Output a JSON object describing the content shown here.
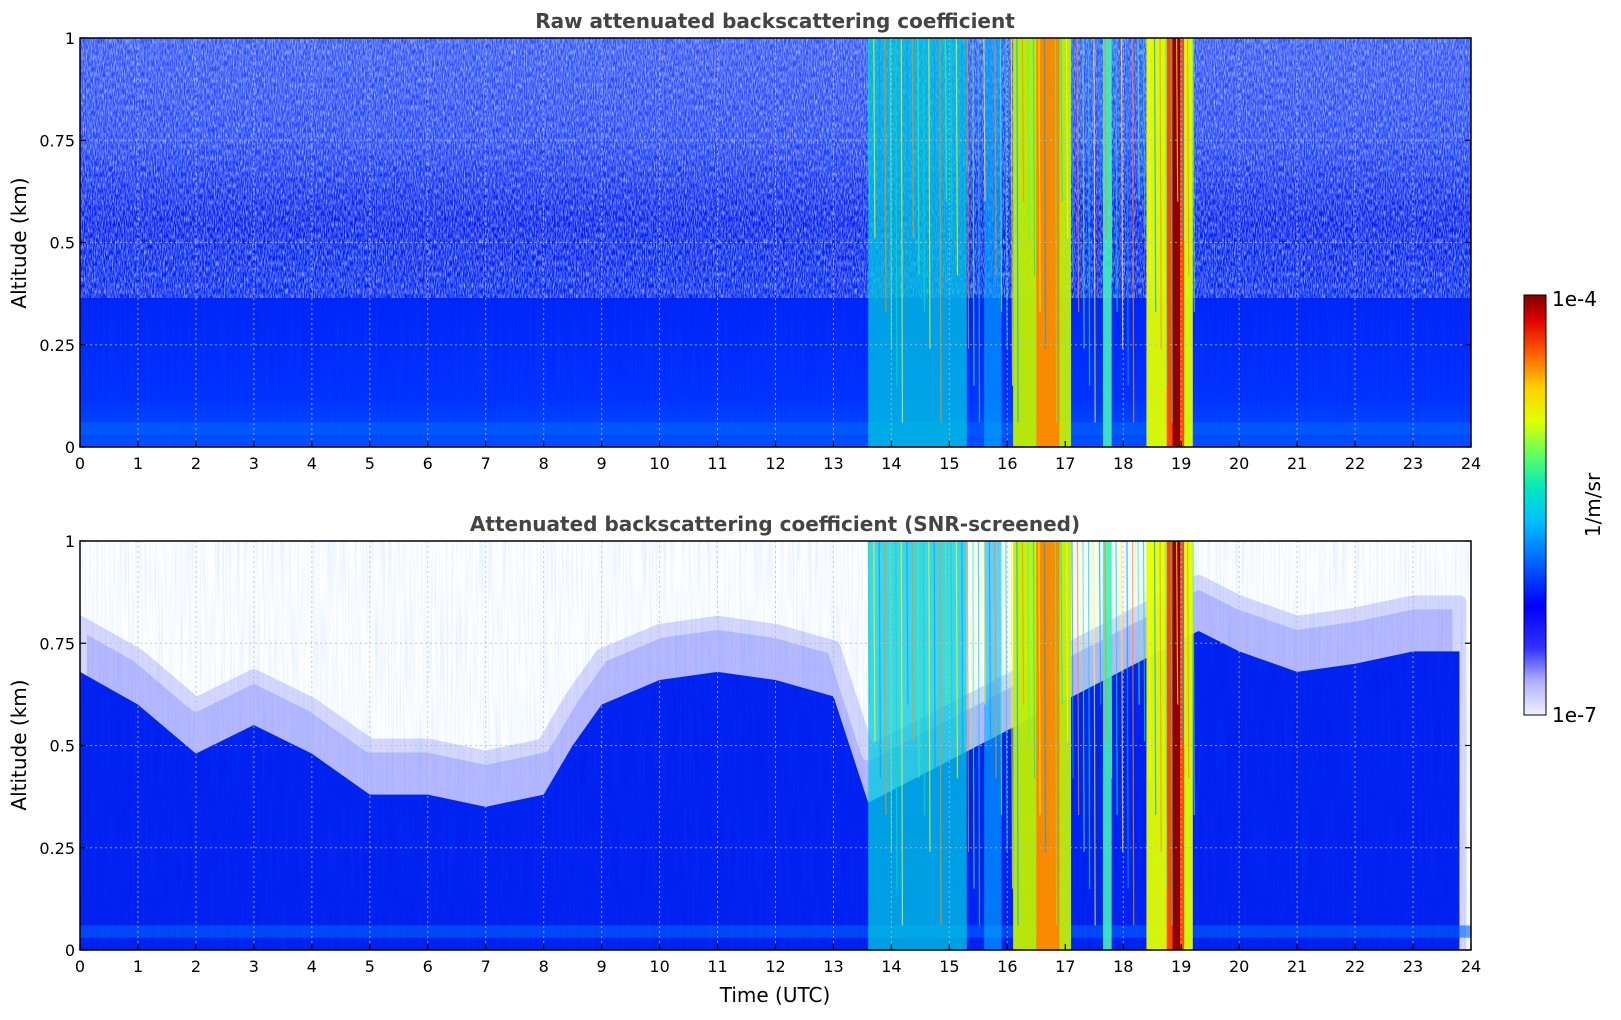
{
  "chart_data": [
    {
      "type": "heatmap",
      "title": "Raw attenuated backscattering coefficient",
      "xlabel": "",
      "ylabel": "Altitude (km)",
      "xlim": [
        0,
        24
      ],
      "ylim": [
        0,
        1
      ],
      "x_ticks": [
        "0",
        "1",
        "2",
        "3",
        "4",
        "5",
        "6",
        "7",
        "8",
        "9",
        "10",
        "11",
        "12",
        "13",
        "14",
        "15",
        "16",
        "17",
        "18",
        "19",
        "20",
        "21",
        "22",
        "23",
        "24"
      ],
      "y_ticks": [
        "0",
        "0.25",
        "0.5",
        "0.75",
        "1"
      ],
      "grid": true,
      "features": [
        {
          "kind": "noise_top_boundary_km",
          "description": "",
          "value_range": [
            0.3,
            0.55
          ]
        },
        {
          "kind": "cloud",
          "x_range": [
            13.6,
            15.3
          ],
          "intensity": "medium"
        },
        {
          "kind": "cloud",
          "x_range": [
            16.1,
            17.1
          ],
          "intensity": "high"
        },
        {
          "kind": "cloud",
          "x_range": [
            17.7,
            17.8
          ],
          "intensity": "medium"
        },
        {
          "kind": "cloud",
          "x_range": [
            18.4,
            19.2
          ],
          "intensity": "very high"
        }
      ]
    },
    {
      "type": "heatmap",
      "title": "Attenuated backscattering coefficient (SNR-screened)",
      "xlabel": "Time (UTC)",
      "ylabel": "Altitude (km)",
      "xlim": [
        0,
        24
      ],
      "ylim": [
        0,
        1
      ],
      "x_ticks": [
        "0",
        "1",
        "2",
        "3",
        "4",
        "5",
        "6",
        "7",
        "8",
        "9",
        "10",
        "11",
        "12",
        "13",
        "14",
        "15",
        "16",
        "17",
        "18",
        "19",
        "20",
        "21",
        "22",
        "23",
        "24"
      ],
      "y_ticks": [
        "0",
        "0.25",
        "0.5",
        "0.75",
        "1"
      ],
      "grid": true,
      "boundary_layer_top_km": {
        "x": [
          0,
          1,
          2,
          3,
          4,
          5,
          6,
          7,
          8,
          8.5,
          9,
          10,
          11,
          12,
          13,
          13.6,
          19.3,
          20,
          21,
          22,
          23,
          23.8
        ],
        "y": [
          0.8,
          0.72,
          0.6,
          0.67,
          0.6,
          0.5,
          0.5,
          0.47,
          0.5,
          0.62,
          0.72,
          0.78,
          0.8,
          0.78,
          0.74,
          0.48,
          0.9,
          0.85,
          0.8,
          0.82,
          0.85,
          0.85
        ]
      }
    }
  ],
  "colorbar": {
    "label": "1/m/sr",
    "max_label": "1e-4",
    "min_label": "1e-7",
    "scale": "log",
    "colors": [
      "#f0f0ff",
      "#c8c8ff",
      "#8080ff",
      "#0000ff",
      "#0050ff",
      "#00a0ff",
      "#00e0e0",
      "#40ff80",
      "#c0ff00",
      "#ffff00",
      "#ffb000",
      "#ff5000",
      "#e00000",
      "#800000"
    ]
  }
}
